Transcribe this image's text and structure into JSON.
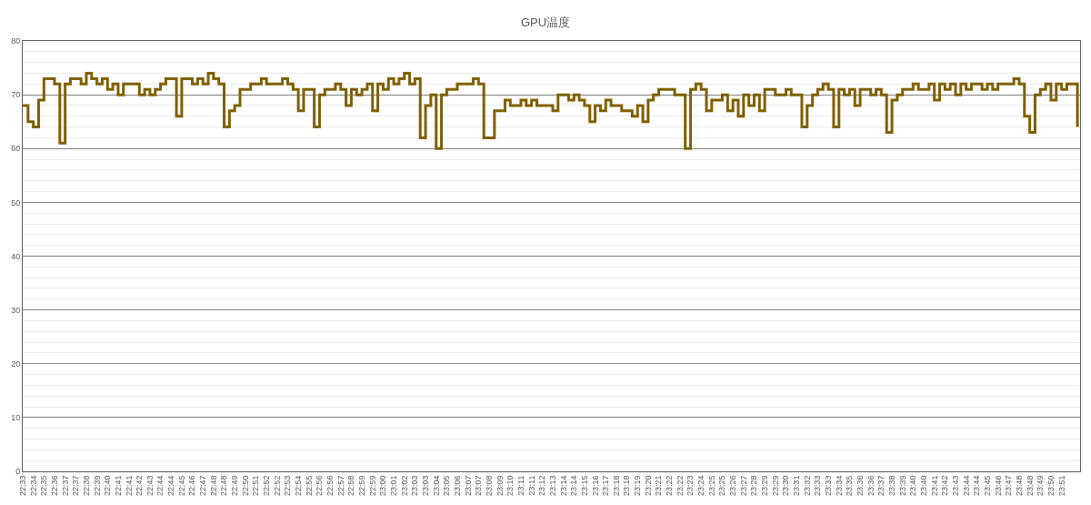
{
  "chart_data": {
    "type": "step",
    "title": "GPU温度",
    "categories": [
      "22:33",
      null,
      "22:34",
      null,
      "22:35",
      null,
      "22:36",
      null,
      "22:37",
      null,
      "22:37",
      null,
      "22:38",
      null,
      "22:39",
      null,
      "22:40",
      null,
      "22:41",
      null,
      "22:41",
      null,
      "22:42",
      null,
      "22:43",
      null,
      "22:44",
      null,
      "22:44",
      null,
      "22:45",
      null,
      "22:46",
      null,
      "22:47",
      null,
      "22:48",
      null,
      "22:48",
      null,
      "22:49",
      null,
      "22:50",
      null,
      "22:51",
      null,
      "22:52",
      null,
      "22:52",
      null,
      "22:53",
      null,
      "22:54",
      null,
      "22:55",
      null,
      "22:56",
      null,
      "22:56",
      null,
      "22:57",
      null,
      "22:58",
      null,
      "22:59",
      null,
      "22:59",
      null,
      "23:00",
      null,
      "23:01",
      null,
      "23:02",
      null,
      "23:03",
      null,
      "23:03",
      null,
      "23:04",
      null,
      "23:05",
      null,
      "23:06",
      null,
      "23:07",
      null,
      "23:07",
      null,
      "23:08",
      null,
      "23:09",
      null,
      "23:10",
      null,
      "23:11",
      null,
      "23:11",
      null,
      "23:12",
      null,
      "23:13",
      null,
      "23:14",
      null,
      "23:14",
      null,
      "23:15",
      null,
      "23:16",
      null,
      "23:17",
      null,
      "23:18",
      null,
      "23:18",
      null,
      "23:19",
      null,
      "23:20",
      null,
      "23:21",
      null,
      "23:22",
      null,
      "23:22",
      null,
      "23:23",
      null,
      "23:24",
      null,
      "23:25",
      null,
      "23:25",
      null,
      "23:26",
      null,
      "23:27",
      null,
      "23:28",
      null,
      "23:29",
      null,
      "23:29",
      null,
      "23:30",
      null,
      "23:31",
      null,
      "23:32",
      null,
      "23:33",
      null,
      "23:33",
      null,
      "23:34",
      null,
      "23:35",
      null,
      "23:36",
      null,
      "23:36",
      null,
      "23:37",
      null,
      "23:38",
      null,
      "23:39",
      null,
      "23:40",
      null,
      "23:40",
      null,
      "23:41",
      null,
      "23:42",
      null,
      "23:43",
      null,
      "23:44",
      null,
      "23:44",
      null,
      "23:45",
      null,
      "23:46",
      null,
      "23:47",
      null,
      "23:48",
      null,
      "23:48",
      null,
      "23:49",
      null,
      "23:50",
      null,
      "23:51",
      null,
      null,
      null
    ],
    "series": [
      {
        "color": "#7f6000",
        "values": [
          68,
          65,
          64,
          69,
          73,
          73,
          72,
          61,
          72,
          73,
          73,
          72,
          74,
          73,
          72,
          73,
          71,
          72,
          70,
          72,
          72,
          72,
          70,
          71,
          70,
          71,
          72,
          73,
          73,
          66,
          73,
          73,
          72,
          73,
          72,
          74,
          73,
          72,
          64,
          67,
          68,
          71,
          71,
          72,
          72,
          73,
          72,
          72,
          72,
          73,
          72,
          71,
          67,
          71,
          71,
          64,
          70,
          71,
          71,
          72,
          71,
          68,
          71,
          70,
          71,
          72,
          67,
          72,
          71,
          73,
          72,
          73,
          74,
          72,
          73,
          62,
          68,
          70,
          60,
          70,
          71,
          71,
          72,
          72,
          72,
          73,
          72,
          62,
          62,
          67,
          67,
          69,
          68,
          68,
          69,
          68,
          69,
          68,
          68,
          68,
          67,
          70,
          70,
          69,
          70,
          69,
          68,
          65,
          68,
          67,
          69,
          68,
          68,
          67,
          67,
          66,
          68,
          65,
          69,
          70,
          71,
          71,
          71,
          70,
          70,
          60,
          71,
          72,
          71,
          67,
          69,
          69,
          70,
          67,
          69,
          66,
          70,
          68,
          70,
          67,
          71,
          71,
          70,
          70,
          71,
          70,
          70,
          64,
          68,
          70,
          71,
          72,
          71,
          64,
          71,
          70,
          71,
          68,
          71,
          71,
          70,
          71,
          70,
          63,
          69,
          70,
          71,
          71,
          72,
          71,
          71,
          72,
          69,
          72,
          71,
          72,
          70,
          72,
          71,
          72,
          72,
          71,
          72,
          71,
          72,
          72,
          72,
          73,
          72,
          66,
          63,
          70,
          71,
          72,
          69,
          72,
          71,
          72,
          72,
          64
        ]
      }
    ],
    "ylim": [
      0,
      80
    ],
    "yticks": [
      0,
      {
        "value": 2,
        "label": null
      },
      {
        "value": 4,
        "label": null
      },
      {
        "value": 6,
        "label": null
      },
      {
        "value": 8,
        "label": null
      },
      10,
      {
        "value": 12,
        "label": null
      },
      {
        "value": 14,
        "label": null
      },
      {
        "value": 16,
        "label": null
      },
      {
        "value": 18,
        "label": null
      },
      20,
      {
        "value": 22,
        "label": null
      },
      {
        "value": 24,
        "label": null
      },
      {
        "value": 26,
        "label": null
      },
      {
        "value": 28,
        "label": null
      },
      30,
      {
        "value": 32,
        "label": null
      },
      {
        "value": 34,
        "label": null
      },
      {
        "value": 36,
        "label": null
      },
      {
        "value": 38,
        "label": null
      },
      40,
      {
        "value": 42,
        "label": null
      },
      {
        "value": 44,
        "label": null
      },
      {
        "value": 46,
        "label": null
      },
      {
        "value": 48,
        "label": null
      },
      50,
      {
        "value": 52,
        "label": null
      },
      {
        "value": 54,
        "label": null
      },
      {
        "value": 56,
        "label": null
      },
      {
        "value": 58,
        "label": null
      },
      60,
      {
        "value": 62,
        "label": null
      },
      {
        "value": 64,
        "label": null
      },
      {
        "value": 66,
        "label": null
      },
      {
        "value": 68,
        "label": null
      },
      70,
      {
        "value": 72,
        "label": null
      },
      {
        "value": 74,
        "label": null
      },
      {
        "value": 76,
        "label": null
      },
      {
        "value": 78,
        "label": null
      },
      80
    ],
    "grid": "y",
    "legend": false
  }
}
